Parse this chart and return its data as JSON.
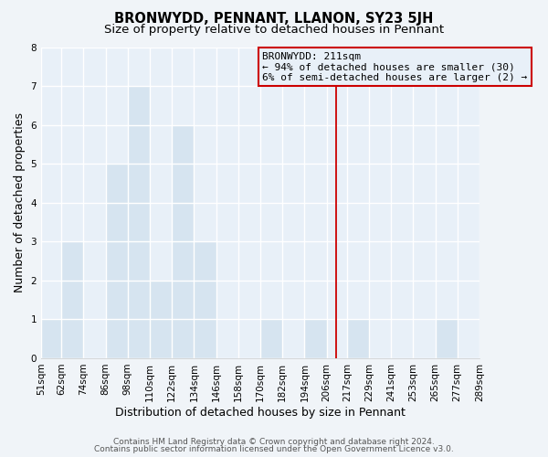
{
  "title": "BRONWYDD, PENNANT, LLANON, SY23 5JH",
  "subtitle": "Size of property relative to detached houses in Pennant",
  "xlabel": "Distribution of detached houses by size in Pennant",
  "ylabel": "Number of detached properties",
  "bin_edges": [
    51,
    62,
    74,
    86,
    98,
    110,
    122,
    134,
    146,
    158,
    170,
    182,
    194,
    206,
    217,
    229,
    241,
    253,
    265,
    277,
    289
  ],
  "bin_labels": [
    "51sqm",
    "62sqm",
    "74sqm",
    "86sqm",
    "98sqm",
    "110sqm",
    "122sqm",
    "134sqm",
    "146sqm",
    "158sqm",
    "170sqm",
    "182sqm",
    "194sqm",
    "206sqm",
    "217sqm",
    "229sqm",
    "241sqm",
    "253sqm",
    "265sqm",
    "277sqm",
    "289sqm"
  ],
  "counts": [
    1,
    3,
    0,
    5,
    7,
    2,
    6,
    3,
    0,
    0,
    1,
    0,
    1,
    0,
    1,
    0,
    0,
    0,
    1,
    0
  ],
  "bar_color": "#d6e4f0",
  "bar_edge_color": "#a8c8e0",
  "marker_value": 211,
  "marker_color": "#cc0000",
  "annotation_title": "BRONWYDD: 211sqm",
  "annotation_line1": "← 94% of detached houses are smaller (30)",
  "annotation_line2": "6% of semi-detached houses are larger (2) →",
  "annotation_box_edge": "#cc0000",
  "ylim": [
    0,
    8
  ],
  "yticks": [
    0,
    1,
    2,
    3,
    4,
    5,
    6,
    7,
    8
  ],
  "footer_line1": "Contains HM Land Registry data © Crown copyright and database right 2024.",
  "footer_line2": "Contains public sector information licensed under the Open Government Licence v3.0.",
  "plot_bg_color": "#e8f0f8",
  "fig_bg_color": "#f0f4f8",
  "grid_color": "#ffffff",
  "title_fontsize": 10.5,
  "subtitle_fontsize": 9.5,
  "axis_label_fontsize": 9,
  "tick_fontsize": 7.5,
  "footer_fontsize": 6.5,
  "annotation_fontsize": 8
}
